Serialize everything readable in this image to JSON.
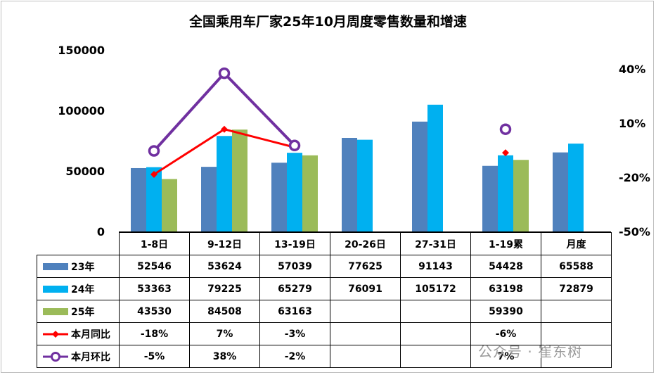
{
  "chart_data": {
    "type": "bar",
    "title": "全国乘用车厂家25年10月周度零售数量和增速",
    "categories": [
      "1-8日",
      "9-12日",
      "13-19日",
      "20-26日",
      "27-31日",
      "1-19累",
      "月度"
    ],
    "series": [
      {
        "name": "23年",
        "color": "#4f81bd",
        "values": [
          52546,
          53624,
          57039,
          77625,
          91143,
          54428,
          65588
        ]
      },
      {
        "name": "24年",
        "color": "#00b0f0",
        "values": [
          53363,
          79225,
          65279,
          76091,
          105172,
          63198,
          72879
        ]
      },
      {
        "name": "25年",
        "color": "#9bbb59",
        "values": [
          43530,
          84508,
          63163,
          null,
          null,
          59390,
          null
        ]
      }
    ],
    "line_series": [
      {
        "name": "本月同比",
        "color": "#ff0000",
        "marker": "diamond",
        "axis": "right",
        "values": [
          -18,
          7,
          -3,
          null,
          null,
          -6,
          null
        ],
        "labels": [
          "-18%",
          "7%",
          "-3%",
          "",
          "",
          "-6%",
          ""
        ]
      },
      {
        "name": "本月环比",
        "color": "#7030a0",
        "marker": "circle",
        "axis": "right",
        "values": [
          -5,
          38,
          -2,
          null,
          null,
          7,
          null
        ],
        "labels": [
          "-5%",
          "38%",
          "-2%",
          "",
          "",
          "7%",
          ""
        ]
      }
    ],
    "ylim": [
      0,
      150000
    ],
    "yticks": [
      "0",
      "50000",
      "100000",
      "150000"
    ],
    "y2lim": [
      -50,
      40
    ],
    "y2ticks": [
      "-50%",
      "-20%",
      "10%",
      "40%"
    ],
    "legend": "data-table"
  },
  "watermark": "公众号 · 崔东树"
}
